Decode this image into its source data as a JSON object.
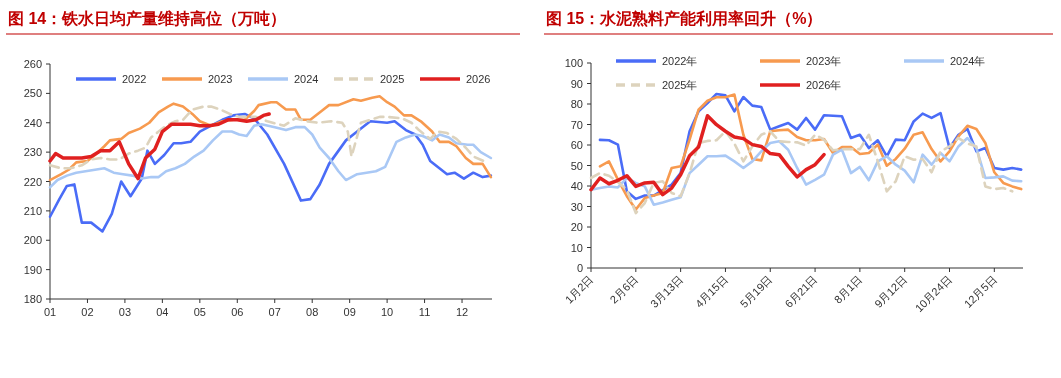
{
  "chart_data": [
    {
      "type": "line",
      "title": "图 14：铁水日均产量维持高位（万吨）",
      "xlim": [
        1,
        12.8
      ],
      "ylim": [
        180,
        260
      ],
      "yticks": [
        180,
        190,
        200,
        210,
        220,
        230,
        240,
        250,
        260
      ],
      "xticks": [
        {
          "value": 1,
          "label": "01"
        },
        {
          "value": 2,
          "label": "02"
        },
        {
          "value": 3,
          "label": "03"
        },
        {
          "value": 4,
          "label": "04"
        },
        {
          "value": 5,
          "label": "05"
        },
        {
          "value": 6,
          "label": "06"
        },
        {
          "value": 7,
          "label": "07"
        },
        {
          "value": 8,
          "label": "08"
        },
        {
          "value": 9,
          "label": "09"
        },
        {
          "value": 10,
          "label": "10"
        },
        {
          "value": 11,
          "label": "11"
        },
        {
          "value": 12,
          "label": "12"
        }
      ],
      "legend": "top",
      "grid": false,
      "series": [
        {
          "name": "2022",
          "color": "#4a6cf7",
          "x": [
            1,
            1.25,
            1.45,
            1.65,
            1.85,
            2.1,
            2.4,
            2.65,
            2.9,
            3.15,
            3.45,
            3.6,
            3.8,
            4.05,
            4.3,
            4.5,
            4.75,
            5,
            5.3,
            5.6,
            5.9,
            6.2,
            6.45,
            6.8,
            7.25,
            7.7,
            7.95,
            8.2,
            8.45,
            8.9,
            9.2,
            9.55,
            10,
            10.2,
            10.5,
            10.75,
            10.95,
            11.15,
            11.6,
            11.8,
            12.05,
            12.3,
            12.55,
            12.77
          ],
          "values": [
            208,
            214,
            218.5,
            219,
            206,
            206,
            203,
            209,
            220,
            215,
            221,
            230.5,
            226,
            229,
            233,
            233,
            233.5,
            237,
            239,
            241,
            242.5,
            243,
            241.5,
            236,
            226,
            213.5,
            214,
            219,
            226,
            234,
            237,
            240.5,
            240,
            240.5,
            237.5,
            236,
            232.5,
            227,
            222.5,
            223,
            221,
            223,
            221.5,
            222
          ]
        },
        {
          "name": "2023",
          "color": "#f79a4f",
          "x": [
            1,
            1.3,
            1.5,
            1.7,
            2,
            2.2,
            2.45,
            2.6,
            2.9,
            3.1,
            3.4,
            3.65,
            3.9,
            4.15,
            4.3,
            4.55,
            4.8,
            5,
            5.3,
            5.6,
            5.9,
            6.2,
            6.45,
            6.57,
            6.9,
            7.05,
            7.3,
            7.55,
            7.7,
            7.95,
            8.25,
            8.45,
            8.7,
            9.1,
            9.3,
            9.6,
            9.8,
            10,
            10.2,
            10.45,
            10.65,
            10.9,
            11.2,
            11.4,
            11.65,
            11.85,
            12.1,
            12.3,
            12.55,
            12.77
          ],
          "values": [
            220.5,
            222.5,
            224,
            226.5,
            227,
            229,
            232,
            234,
            234.5,
            236.5,
            238,
            240,
            243.5,
            245.5,
            246.5,
            245.5,
            243,
            240.5,
            239,
            240.5,
            241,
            241,
            244,
            246,
            247,
            247,
            244.5,
            244.5,
            241,
            241,
            244,
            246,
            246,
            248,
            247.5,
            248.5,
            249,
            247,
            245.5,
            242.5,
            242.5,
            240.5,
            237,
            233.5,
            233.5,
            232,
            228,
            226,
            226,
            221.5
          ]
        },
        {
          "name": "2024",
          "color": "#a9c8f5",
          "x": [
            1,
            1.2,
            1.45,
            1.7,
            1.95,
            2.2,
            2.45,
            2.7,
            2.95,
            3.2,
            3.45,
            3.7,
            3.9,
            4.1,
            4.35,
            4.6,
            4.85,
            5.1,
            5.35,
            5.6,
            5.85,
            6.05,
            6.25,
            6.45,
            6.65,
            7,
            7.3,
            7.55,
            7.8,
            8,
            8.2,
            8.45,
            8.7,
            8.9,
            9.2,
            9.45,
            9.7,
            9.95,
            10.25,
            10.5,
            10.75,
            10.95,
            11.2,
            11.4,
            11.65,
            11.85,
            12.15,
            12.3,
            12.5,
            12.77
          ],
          "values": [
            218,
            220.5,
            222,
            223,
            223.5,
            224,
            224.5,
            223,
            222.5,
            222,
            221,
            221.5,
            221.5,
            223.5,
            224.5,
            226,
            228.5,
            230.5,
            234,
            237,
            237,
            236,
            235.5,
            239,
            239.5,
            238.5,
            237.5,
            238.5,
            238.5,
            236,
            231.5,
            228,
            223.5,
            220.5,
            222.5,
            223,
            223.5,
            225,
            233.5,
            235,
            236,
            235.5,
            234,
            236,
            235,
            233,
            232.5,
            232.5,
            230,
            228
          ]
        },
        {
          "name": "2025",
          "color": "#ddd3bd",
          "line_style": "dashed",
          "x": [
            1,
            1.3,
            1.55,
            1.85,
            2.1,
            2.35,
            2.6,
            2.85,
            3.1,
            3.35,
            3.55,
            3.7,
            3.9,
            4.1,
            4.35,
            4.55,
            4.8,
            5.1,
            5.3,
            5.55,
            5.8,
            6.05,
            6.3,
            6.5,
            6.8,
            7.25,
            7.55,
            7.85,
            8.15,
            8.5,
            8.8,
            8.95,
            9.05,
            9.3,
            9.55,
            9.8,
            10,
            10.4,
            10.65,
            10.85,
            11.15,
            11.35,
            11.6,
            11.85,
            12.1,
            12.3,
            12.66
          ],
          "values": [
            225.5,
            224.5,
            224.5,
            225.5,
            227.5,
            228,
            227.5,
            227.5,
            229.5,
            230.5,
            231.5,
            235,
            237,
            239,
            240.5,
            241,
            244.5,
            245.5,
            245.5,
            244.5,
            243,
            242,
            242,
            242,
            240.5,
            239,
            241.5,
            240.5,
            240,
            240.5,
            240,
            237,
            228.5,
            240,
            241,
            242,
            242,
            241.5,
            240,
            237.5,
            234.5,
            237,
            236.5,
            234.5,
            231.5,
            228.5,
            226.5
          ]
        },
        {
          "name": "2026",
          "color": "#e02020",
          "x": [
            1,
            1.15,
            1.35,
            1.6,
            1.85,
            2.1,
            2.35,
            2.6,
            2.85,
            3.1,
            3.35,
            3.55,
            3.8,
            4,
            4.25,
            4.5,
            4.75,
            5,
            5.25,
            5.5,
            5.75,
            6,
            6.25,
            6.5,
            6.7,
            6.85
          ],
          "values": [
            227,
            229.5,
            228,
            228,
            228,
            228.5,
            230.5,
            230.5,
            233.5,
            226,
            221,
            228,
            231,
            237,
            239.5,
            239.5,
            239.5,
            239,
            239,
            239.5,
            241,
            241,
            240.5,
            241,
            242.5,
            243
          ]
        }
      ]
    },
    {
      "type": "line",
      "title": "图 15：水泥熟料产能利用率回升（%）",
      "ylim": [
        0,
        100
      ],
      "yticks": [
        0,
        10,
        20,
        30,
        40,
        50,
        60,
        70,
        80,
        90,
        100
      ],
      "categories": [
        "1月2日",
        null,
        null,
        null,
        null,
        "2月6日",
        null,
        null,
        null,
        null,
        "3月13日",
        null,
        null,
        null,
        null,
        "4月15日",
        null,
        null,
        null,
        null,
        "5月19日",
        null,
        null,
        null,
        null,
        "6月21日",
        null,
        null,
        null,
        null,
        "8月1日",
        null,
        null,
        null,
        null,
        "9月12日",
        null,
        null,
        null,
        null,
        "10月24日",
        null,
        null,
        null,
        null,
        "12月5日",
        null,
        null,
        null
      ],
      "legend": "top",
      "grid": false,
      "series": [
        {
          "name": "2022年",
          "color": "#4a6cf7",
          "values": [
            null,
            62.5,
            62.3,
            60.2,
            37.4,
            33.7,
            35.4,
            35.3,
            38,
            40.7,
            46.3,
            66.7,
            76.4,
            80.5,
            84.9,
            84.2,
            76.4,
            83.4,
            79.2,
            78.5,
            67.5,
            69.1,
            70.7,
            67.5,
            73.2,
            67.5,
            74.5,
            74.3,
            74,
            63.4,
            65,
            58.5,
            62.3,
            54.5,
            62.6,
            62.3,
            71.5,
            75.3,
            73.2,
            75.6,
            58.5,
            65,
            67.8,
            56.9,
            58.5,
            48.8,
            48,
            48.8,
            48
          ]
        },
        {
          "name": "2023年",
          "color": "#f79a4f",
          "values": [
            null,
            49.6,
            52,
            43.1,
            35,
            28.5,
            34.1,
            35.4,
            36.6,
            48.8,
            49.6,
            62.6,
            77.2,
            81.6,
            83.3,
            83.3,
            84.6,
            65,
            53.2,
            52.5,
            66.7,
            67.2,
            67.5,
            63.9,
            62.3,
            62.3,
            62.9,
            56.1,
            59,
            59,
            55.6,
            56.1,
            60.2,
            49.9,
            53.2,
            58.2,
            65,
            66.2,
            58,
            52,
            56.9,
            64.2,
            69.4,
            67.8,
            61,
            46.7,
            41.5,
            39.8,
            38.5
          ]
        },
        {
          "name": "2024年",
          "color": "#a9c8f5",
          "values": [
            38.2,
            39,
            39.8,
            39.3,
            43.9,
            41.5,
            39.8,
            30.9,
            32,
            33.3,
            34.5,
            46.3,
            50.4,
            54.5,
            54.5,
            54.8,
            52,
            48.8,
            52,
            56.9,
            61,
            61.8,
            57.7,
            48.8,
            40.7,
            43,
            45.5,
            55.3,
            57.7,
            46.3,
            49.3,
            42.8,
            52,
            54.5,
            50.4,
            47.5,
            41.8,
            55.3,
            50.4,
            56.1,
            52,
            59.3,
            63.4,
            58.5,
            43.9,
            44.2,
            44.7,
            42.6,
            42.3
          ]
        },
        {
          "name": "2025年",
          "color": "#ddd3bd",
          "line_style": "dashed",
          "values": [
            43.9,
            46.3,
            45,
            42,
            38.2,
            26.8,
            31.7,
            41.5,
            42.3,
            36.6,
            35,
            46.3,
            61,
            62,
            62.3,
            66.7,
            60.7,
            52,
            59.3,
            65,
            66.7,
            61.8,
            61.5,
            61.3,
            59.7,
            65,
            62.6,
            57.4,
            58,
            58,
            58,
            65,
            52,
            37.4,
            42.3,
            54.5,
            52.8,
            53.2,
            46.7,
            56.9,
            59.3,
            63.4,
            60.7,
            59.3,
            39.8,
            38.5,
            39,
            37.4,
            null
          ]
        },
        {
          "name": "2026年",
          "color": "#e02020",
          "values": [
            38.2,
            43.9,
            41.1,
            42.8,
            45,
            39.8,
            41.5,
            41.8,
            35.8,
            39,
            45.5,
            54.8,
            59,
            74.3,
            69.9,
            66.7,
            63.9,
            63.1,
            60.2,
            59.3,
            55.8,
            55.3,
            49.6,
            44.4,
            48,
            50.4,
            55.3,
            null,
            null,
            null,
            null,
            null,
            null,
            null,
            null,
            null,
            null,
            null,
            null,
            null,
            null,
            null,
            null,
            null,
            null,
            null,
            null,
            null,
            null
          ]
        }
      ]
    }
  ]
}
